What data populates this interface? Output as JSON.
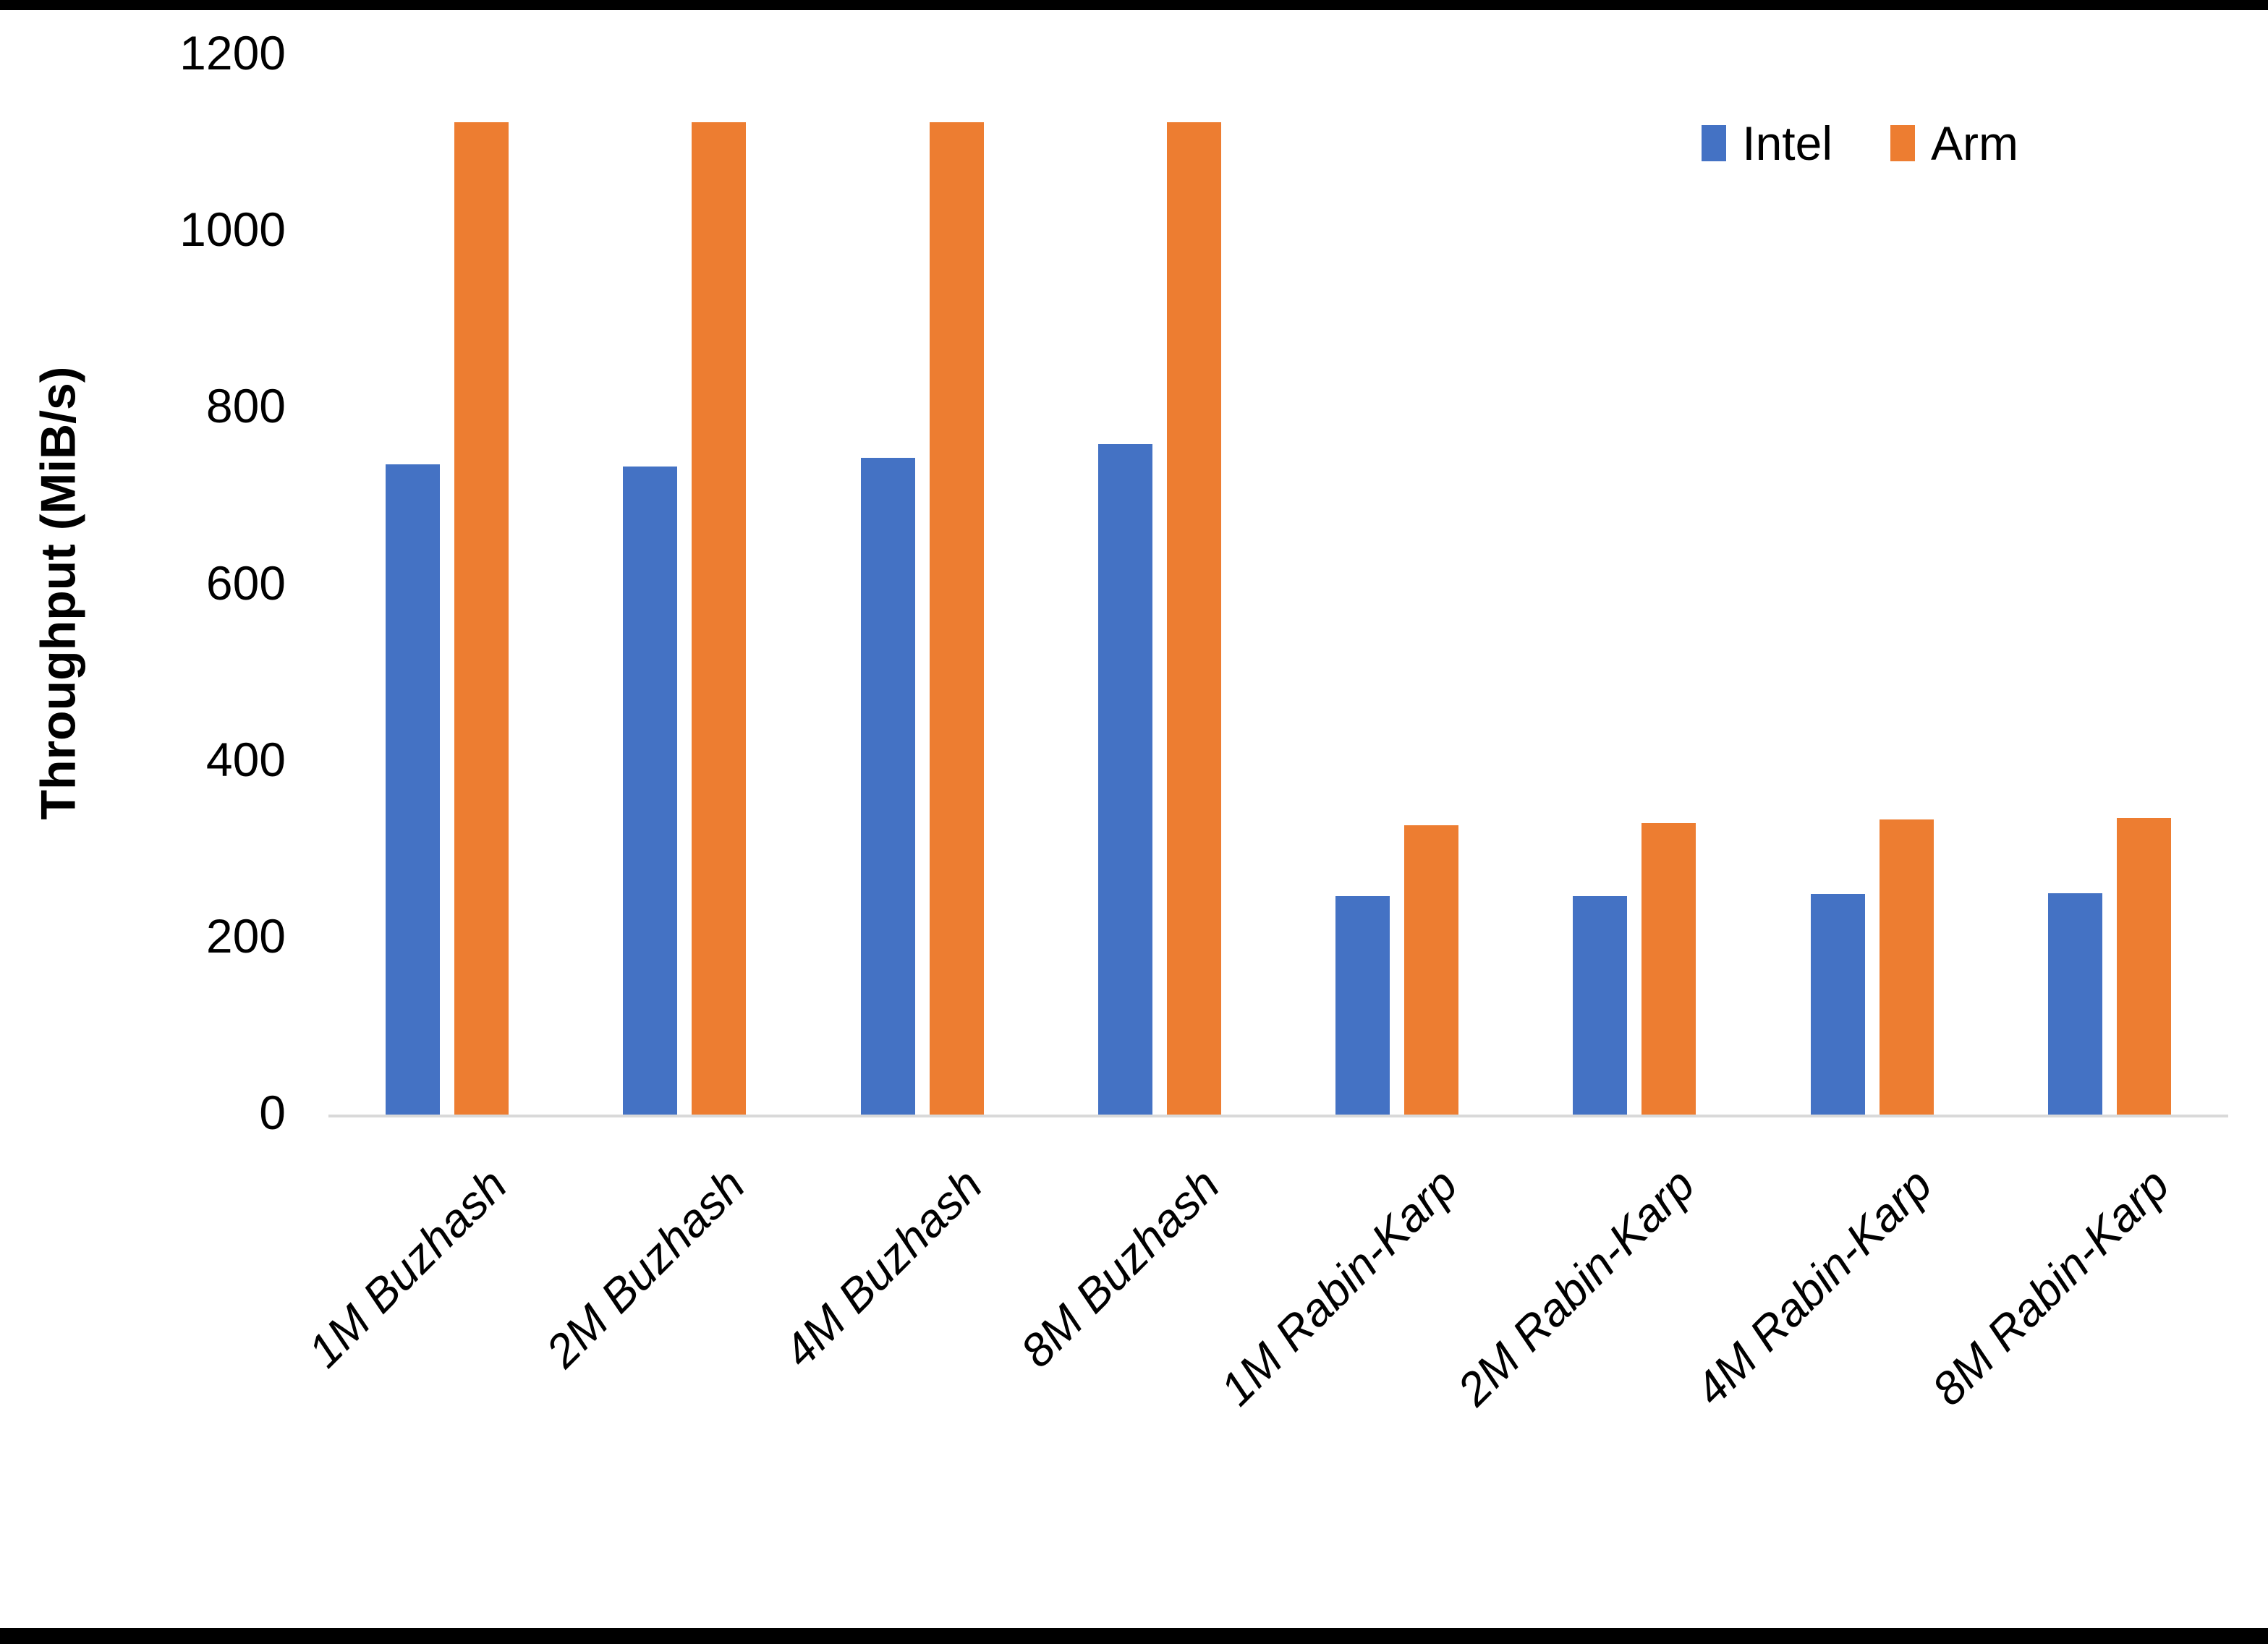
{
  "chart_data": {
    "type": "bar",
    "title": "",
    "categories": [
      "1M Buzhash",
      "2M Buzhash",
      "4M Buzhash",
      "8M Buzhash",
      "1M Rabin-Karp",
      "2M Rabin-Karp",
      "4M Rabin-Karp",
      "8M Rabin-Karp"
    ],
    "series": [
      {
        "name": "Intel",
        "color": "#4472C4",
        "values": [
          736,
          734,
          744,
          759,
          247,
          247,
          250,
          251
        ]
      },
      {
        "name": "Arm",
        "color": "#ED7D31",
        "values": [
          1124,
          1124,
          1124,
          1124,
          328,
          330,
          334,
          336
        ]
      }
    ],
    "xlabel": "",
    "ylabel": "Throughput (MiB/s)",
    "ylim": [
      0,
      1200
    ],
    "y_ticks": [
      0,
      200,
      400,
      600,
      800,
      1000,
      1200
    ],
    "grid": false,
    "legend_position": "top-right"
  },
  "colors": {
    "background": "#FFFFFF",
    "axis_line": "#D9D9D9",
    "text": "#000000",
    "frame_border": "#000000"
  }
}
